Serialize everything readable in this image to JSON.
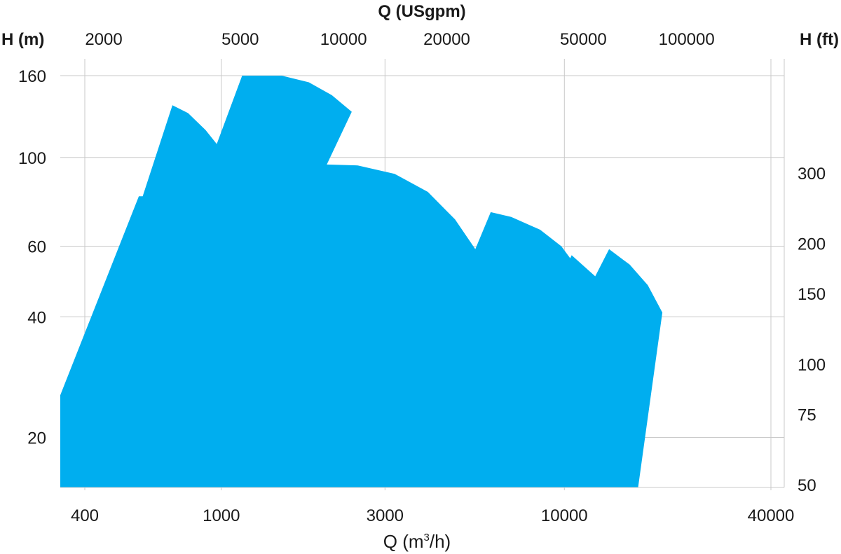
{
  "chart_data": {
    "type": "area",
    "title": "",
    "xlabel_bottom": "Q (m³/h)",
    "xlabel_bottom_base": "Q (m",
    "xlabel_bottom_sup": "3",
    "xlabel_bottom_tail": "/h)",
    "xlabel_top": "Q (USgpm)",
    "ylabel_left": "H (m)",
    "ylabel_right": "H (ft)",
    "x_scale": "log",
    "y_scale": "log",
    "xlim": [
      330,
      40000
    ],
    "ylim": [
      15,
      160
    ],
    "grid": true,
    "color": "#00aeef",
    "x_ticks": [
      400,
      1000,
      3000,
      10000,
      40000
    ],
    "x_tick_labels": [
      "400",
      "1000",
      "3000",
      "10000",
      "40000"
    ],
    "top_ticks": [
      2000,
      5000,
      10000,
      20000,
      50000,
      100000
    ],
    "top_tick_labels": [
      "2000",
      "5000",
      "10000",
      "20000",
      "50000",
      "100000"
    ],
    "y_ticks": [
      20,
      40,
      60,
      100,
      160
    ],
    "y_tick_labels": [
      "20",
      "40",
      "60",
      "100",
      "160"
    ],
    "right_ticks": [
      50,
      75,
      100,
      150,
      200,
      300
    ],
    "right_tick_labels": [
      "50",
      "75",
      "100",
      "150",
      "200",
      "300"
    ],
    "envelope": [
      {
        "q": 330,
        "h": 15
      },
      {
        "q": 330,
        "h": 25.5
      },
      {
        "q": 575,
        "h": 80
      },
      {
        "q": 590,
        "h": 80
      },
      {
        "q": 720,
        "h": 135
      },
      {
        "q": 800,
        "h": 129
      },
      {
        "q": 900,
        "h": 117
      },
      {
        "q": 970,
        "h": 108
      },
      {
        "q": 1150,
        "h": 160
      },
      {
        "q": 1500,
        "h": 160
      },
      {
        "q": 1800,
        "h": 154
      },
      {
        "q": 2100,
        "h": 143
      },
      {
        "q": 2400,
        "h": 130
      },
      {
        "q": 2030,
        "h": 96
      },
      {
        "q": 2500,
        "h": 95.5
      },
      {
        "q": 3200,
        "h": 91
      },
      {
        "q": 4000,
        "h": 82
      },
      {
        "q": 4800,
        "h": 70
      },
      {
        "q": 5500,
        "h": 59
      },
      {
        "q": 6100,
        "h": 73
      },
      {
        "q": 7000,
        "h": 71
      },
      {
        "q": 8500,
        "h": 66
      },
      {
        "q": 9800,
        "h": 60
      },
      {
        "q": 10400,
        "h": 56
      },
      {
        "q": 10500,
        "h": 57
      },
      {
        "q": 12300,
        "h": 50.5
      },
      {
        "q": 13500,
        "h": 59
      },
      {
        "q": 15500,
        "h": 54
      },
      {
        "q": 17500,
        "h": 48
      },
      {
        "q": 19300,
        "h": 41
      },
      {
        "q": 16400,
        "h": 15
      }
    ]
  }
}
